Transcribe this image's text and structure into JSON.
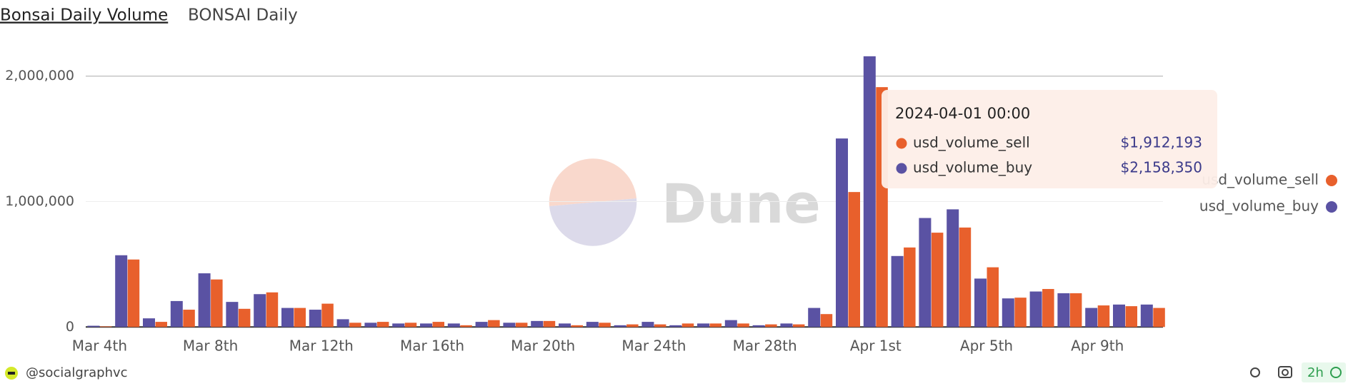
{
  "chart_data": {
    "type": "bar",
    "title": "Bonsai Daily Volume",
    "subtitle": "BONSAI Daily",
    "categories": [
      "Mar 4th",
      null,
      null,
      null,
      "Mar 8th",
      null,
      null,
      null,
      "Mar 12th",
      null,
      null,
      null,
      "Mar 16th",
      null,
      null,
      null,
      "Mar 20th",
      null,
      null,
      null,
      "Mar 24th",
      null,
      null,
      null,
      "Mar 28th",
      null,
      null,
      null,
      "Apr 1st",
      null,
      null,
      null,
      "Apr 5th",
      null,
      null,
      null,
      "Apr 9th",
      null,
      null
    ],
    "series": [
      {
        "name": "usd_volume_sell",
        "color": "#e8602c",
        "values": [
          5000,
          538000,
          41000,
          138000,
          379000,
          145000,
          276000,
          152000,
          186000,
          34000,
          41000,
          34000,
          41000,
          14000,
          55000,
          34000,
          48000,
          14000,
          34000,
          21000,
          21000,
          28000,
          28000,
          28000,
          21000,
          21000,
          103000,
          1076000,
          1912193,
          634000,
          752000,
          793000,
          476000,
          234000,
          303000,
          269000,
          172000,
          166000,
          152000
        ],
        "value_labels": [
          null,
          null,
          null,
          null,
          null,
          null,
          null,
          null,
          null,
          null,
          null,
          null,
          null,
          null,
          null,
          null,
          null,
          null,
          null,
          null,
          null,
          null,
          null,
          null,
          null,
          null,
          null,
          null,
          "$1,912,193",
          null,
          null,
          null,
          null,
          null,
          null,
          null,
          null,
          null,
          null
        ]
      },
      {
        "name": "usd_volume_buy",
        "color": "#5a52a3",
        "values": [
          10000,
          572000,
          69000,
          207000,
          428000,
          200000,
          262000,
          152000,
          138000,
          62000,
          34000,
          28000,
          28000,
          28000,
          41000,
          34000,
          48000,
          28000,
          41000,
          14000,
          41000,
          14000,
          28000,
          55000,
          14000,
          28000,
          152000,
          1503000,
          2158350,
          566000,
          869000,
          938000,
          386000,
          228000,
          283000,
          269000,
          152000,
          179000,
          179000
        ],
        "value_labels": [
          null,
          null,
          null,
          null,
          null,
          null,
          null,
          null,
          null,
          null,
          null,
          null,
          null,
          null,
          null,
          null,
          null,
          null,
          null,
          null,
          null,
          null,
          null,
          null,
          null,
          null,
          null,
          null,
          "$2,158,350",
          null,
          null,
          null,
          null,
          null,
          null,
          null,
          null,
          null,
          null
        ]
      }
    ],
    "ylim": [
      0,
      2200000
    ],
    "yticks": [
      {
        "value": 0,
        "label": "0"
      },
      {
        "value": 1000000,
        "label": "1,000,000"
      },
      {
        "value": 2000000,
        "label": "2,000,000"
      }
    ],
    "grid": true,
    "legend": "right",
    "tooltip_title": "2024-04-01 00:00",
    "watermark": "Dune"
  },
  "footer": {
    "author": "@socialgraphvc",
    "age": "2h"
  }
}
